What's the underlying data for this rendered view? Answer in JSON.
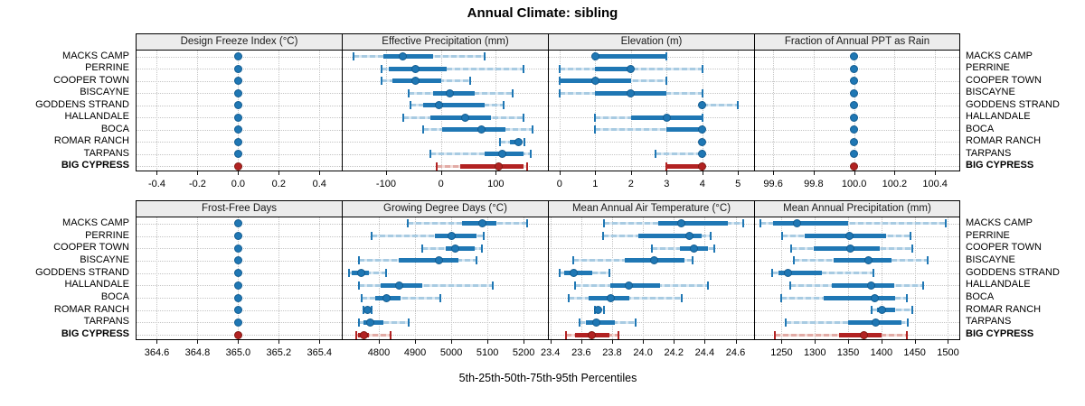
{
  "title": "Annual Climate: sibling",
  "xlabel": "5th-25th-50th-75th-95th Percentiles",
  "colors": {
    "series": "#1f77b4",
    "series_dark": "#135c90",
    "series_light": "#a8cbe2",
    "series_lighter": "#d8e7f2",
    "highlight": "#b22222",
    "highlight_dark": "#801a12",
    "highlight_light": "#e2aba5",
    "highlight_lighter": "#f3dcd8",
    "grid": "#c4c4c4",
    "strip_bg": "#ececec",
    "border": "#000000"
  },
  "chart_data": {
    "type": "dotplot-percentiles",
    "percentiles": [
      5,
      25,
      50,
      75,
      95
    ],
    "sites": [
      "MACKS CAMP",
      "PERRINE",
      "COOPER TOWN",
      "BISCAYNE",
      "GODDENS STRAND",
      "HALLANDALE",
      "BOCA",
      "ROMAR RANCH",
      "TARPANS",
      "BIG CYPRESS"
    ],
    "highlight_site": "BIG CYPRESS",
    "panels": [
      {
        "title": "Design Freeze Index (°C)",
        "row": 0,
        "col": 0,
        "range": [
          -0.5,
          0.51
        ],
        "ticks": [
          -0.4,
          -0.2,
          0.0,
          0.2,
          0.4
        ],
        "tick_labels": [
          "-0.4",
          "-0.2",
          "0.0",
          "0.2",
          "0.4"
        ],
        "values": [
          [
            0,
            0,
            0,
            0,
            0
          ],
          [
            0,
            0,
            0,
            0,
            0
          ],
          [
            0,
            0,
            0,
            0,
            0
          ],
          [
            0,
            0,
            0,
            0,
            0
          ],
          [
            0,
            0,
            0,
            0,
            0
          ],
          [
            0,
            0,
            0,
            0,
            0
          ],
          [
            0,
            0,
            0,
            0,
            0
          ],
          [
            0,
            0,
            0,
            0,
            0
          ],
          [
            0,
            0,
            0,
            0,
            0
          ],
          [
            0,
            0,
            0,
            0,
            0
          ]
        ]
      },
      {
        "title": "Effective Precipitation (mm)",
        "row": 0,
        "col": 1,
        "range": [
          -179,
          195
        ],
        "ticks": [
          -100,
          0,
          100
        ],
        "tick_labels": [
          "-100",
          "0",
          "100"
        ],
        "values": [
          [
            -160,
            -105,
            -70,
            -15,
            80
          ],
          [
            -108,
            -95,
            -46,
            10,
            150
          ],
          [
            -108,
            -88,
            -47,
            0,
            54
          ],
          [
            -59,
            -15,
            16,
            61,
            131
          ],
          [
            -56,
            -33,
            -3,
            80,
            115
          ],
          [
            -69,
            -20,
            44,
            92,
            150
          ],
          [
            -33,
            2,
            74,
            118,
            167
          ],
          [
            108,
            125,
            141,
            148,
            152
          ],
          [
            -20,
            80,
            111,
            150,
            164
          ],
          [
            -8,
            35,
            105,
            150,
            157
          ]
        ]
      },
      {
        "title": "Elevation (m)",
        "row": 0,
        "col": 2,
        "range": [
          -0.3,
          5.45
        ],
        "ticks": [
          0,
          1,
          2,
          3,
          4,
          5
        ],
        "tick_labels": [
          "0",
          "1",
          "2",
          "3",
          "4",
          "5"
        ],
        "values": [
          [
            1,
            1,
            1,
            3,
            3
          ],
          [
            0,
            1,
            2,
            2,
            4
          ],
          [
            0,
            0,
            1,
            2,
            3
          ],
          [
            0,
            1,
            2,
            3,
            4
          ],
          [
            4,
            4,
            4,
            4,
            5
          ],
          [
            1,
            2,
            3,
            4,
            4
          ],
          [
            1,
            3,
            4,
            4,
            4
          ],
          [
            4,
            4,
            4,
            4,
            4
          ],
          [
            2.7,
            4,
            4,
            4,
            4
          ],
          [
            3,
            3,
            4,
            4,
            4
          ]
        ]
      },
      {
        "title": "Fraction of Annual PPT as Rain",
        "row": 0,
        "col": 3,
        "range": [
          99.51,
          100.52
        ],
        "ticks": [
          99.6,
          99.8,
          100.0,
          100.2,
          100.4
        ],
        "tick_labels": [
          "99.6",
          "99.8",
          "100.0",
          "100.2",
          "100.4"
        ],
        "values": [
          [
            100,
            100,
            100,
            100,
            100
          ],
          [
            100,
            100,
            100,
            100,
            100
          ],
          [
            100,
            100,
            100,
            100,
            100
          ],
          [
            100,
            100,
            100,
            100,
            100
          ],
          [
            100,
            100,
            100,
            100,
            100
          ],
          [
            100,
            100,
            100,
            100,
            100
          ],
          [
            100,
            100,
            100,
            100,
            100
          ],
          [
            100,
            100,
            100,
            100,
            100
          ],
          [
            100,
            100,
            100,
            100,
            100
          ],
          [
            100,
            100,
            100,
            100,
            100
          ]
        ]
      },
      {
        "title": "Frost-Free Days",
        "row": 1,
        "col": 0,
        "range": [
          364.5,
          365.51
        ],
        "ticks": [
          364.6,
          364.8,
          365.0,
          365.2,
          365.4
        ],
        "tick_labels": [
          "364.6",
          "364.8",
          "365.0",
          "365.2",
          "365.4"
        ],
        "values": [
          [
            365,
            365,
            365,
            365,
            365
          ],
          [
            365,
            365,
            365,
            365,
            365
          ],
          [
            365,
            365,
            365,
            365,
            365
          ],
          [
            365,
            365,
            365,
            365,
            365
          ],
          [
            365,
            365,
            365,
            365,
            365
          ],
          [
            365,
            365,
            365,
            365,
            365
          ],
          [
            365,
            365,
            365,
            365,
            365
          ],
          [
            365,
            365,
            365,
            365,
            365
          ],
          [
            365,
            365,
            365,
            365,
            365
          ],
          [
            365,
            365,
            365,
            365,
            365
          ]
        ]
      },
      {
        "title": "Growing Degree Days (°C)",
        "row": 1,
        "col": 1,
        "range": [
          4700,
          5267
        ],
        "ticks": [
          4800,
          4900,
          5000,
          5100,
          5200
        ],
        "tick_labels": [
          "4800",
          "4900",
          "5000",
          "5100",
          "5200"
        ],
        "values": [
          [
            4880,
            5030,
            5085,
            5125,
            5210
          ],
          [
            4780,
            4955,
            5000,
            5070,
            5090
          ],
          [
            4920,
            4985,
            5010,
            5065,
            5085
          ],
          [
            4745,
            4855,
            4965,
            5020,
            5070
          ],
          [
            4718,
            4726,
            4752,
            4772,
            4820
          ],
          [
            4745,
            4805,
            4855,
            4920,
            5115
          ],
          [
            4752,
            4790,
            4822,
            4860,
            4970
          ],
          [
            4758,
            4762,
            4768,
            4775,
            4780
          ],
          [
            4746,
            4757,
            4776,
            4812,
            4882
          ],
          [
            4738,
            4742,
            4758,
            4772,
            4832
          ]
        ]
      },
      {
        "title": "Mean Annual Air Temperature (°C)",
        "row": 1,
        "col": 2,
        "range": [
          23.39,
          24.72
        ],
        "ticks": [
          23.4,
          23.6,
          23.8,
          24.0,
          24.2,
          24.4,
          24.6
        ],
        "tick_labels": [
          "23.4",
          "23.6",
          "23.8",
          "24.0",
          "24.2",
          "24.4",
          "24.6"
        ],
        "values": [
          [
            23.75,
            24.1,
            24.25,
            24.55,
            24.65
          ],
          [
            23.74,
            23.97,
            24.3,
            24.38,
            24.44
          ],
          [
            24.06,
            24.24,
            24.33,
            24.42,
            24.46
          ],
          [
            23.55,
            23.88,
            24.07,
            24.27,
            24.32
          ],
          [
            23.46,
            23.49,
            23.55,
            23.67,
            23.78
          ],
          [
            23.56,
            23.79,
            23.91,
            24.11,
            24.42
          ],
          [
            23.52,
            23.65,
            23.79,
            23.91,
            24.25
          ],
          [
            23.69,
            23.7,
            23.71,
            23.73,
            23.75
          ],
          [
            23.59,
            23.63,
            23.7,
            23.82,
            23.95
          ],
          [
            23.5,
            23.56,
            23.67,
            23.78,
            23.84
          ]
        ]
      },
      {
        "title": "Mean Annual Precipitation (mm)",
        "row": 1,
        "col": 3,
        "range": [
          1210,
          1517
        ],
        "ticks": [
          1250,
          1300,
          1350,
          1400,
          1450,
          1500
        ],
        "tick_labels": [
          "1250",
          "1300",
          "1350",
          "1400",
          "1450",
          "1500"
        ],
        "values": [
          [
            1218,
            1237,
            1273,
            1350,
            1497
          ],
          [
            1251,
            1285,
            1352,
            1407,
            1444
          ],
          [
            1264,
            1298,
            1353,
            1397,
            1446
          ],
          [
            1268,
            1328,
            1380,
            1415,
            1470
          ],
          [
            1236,
            1245,
            1260,
            1310,
            1388
          ],
          [
            1263,
            1325,
            1385,
            1419,
            1462
          ],
          [
            1249,
            1313,
            1390,
            1420,
            1438
          ],
          [
            1385,
            1393,
            1401,
            1420,
            1447
          ],
          [
            1256,
            1350,
            1391,
            1430,
            1440
          ],
          [
            1240,
            1337,
            1374,
            1400,
            1438
          ]
        ]
      }
    ]
  }
}
